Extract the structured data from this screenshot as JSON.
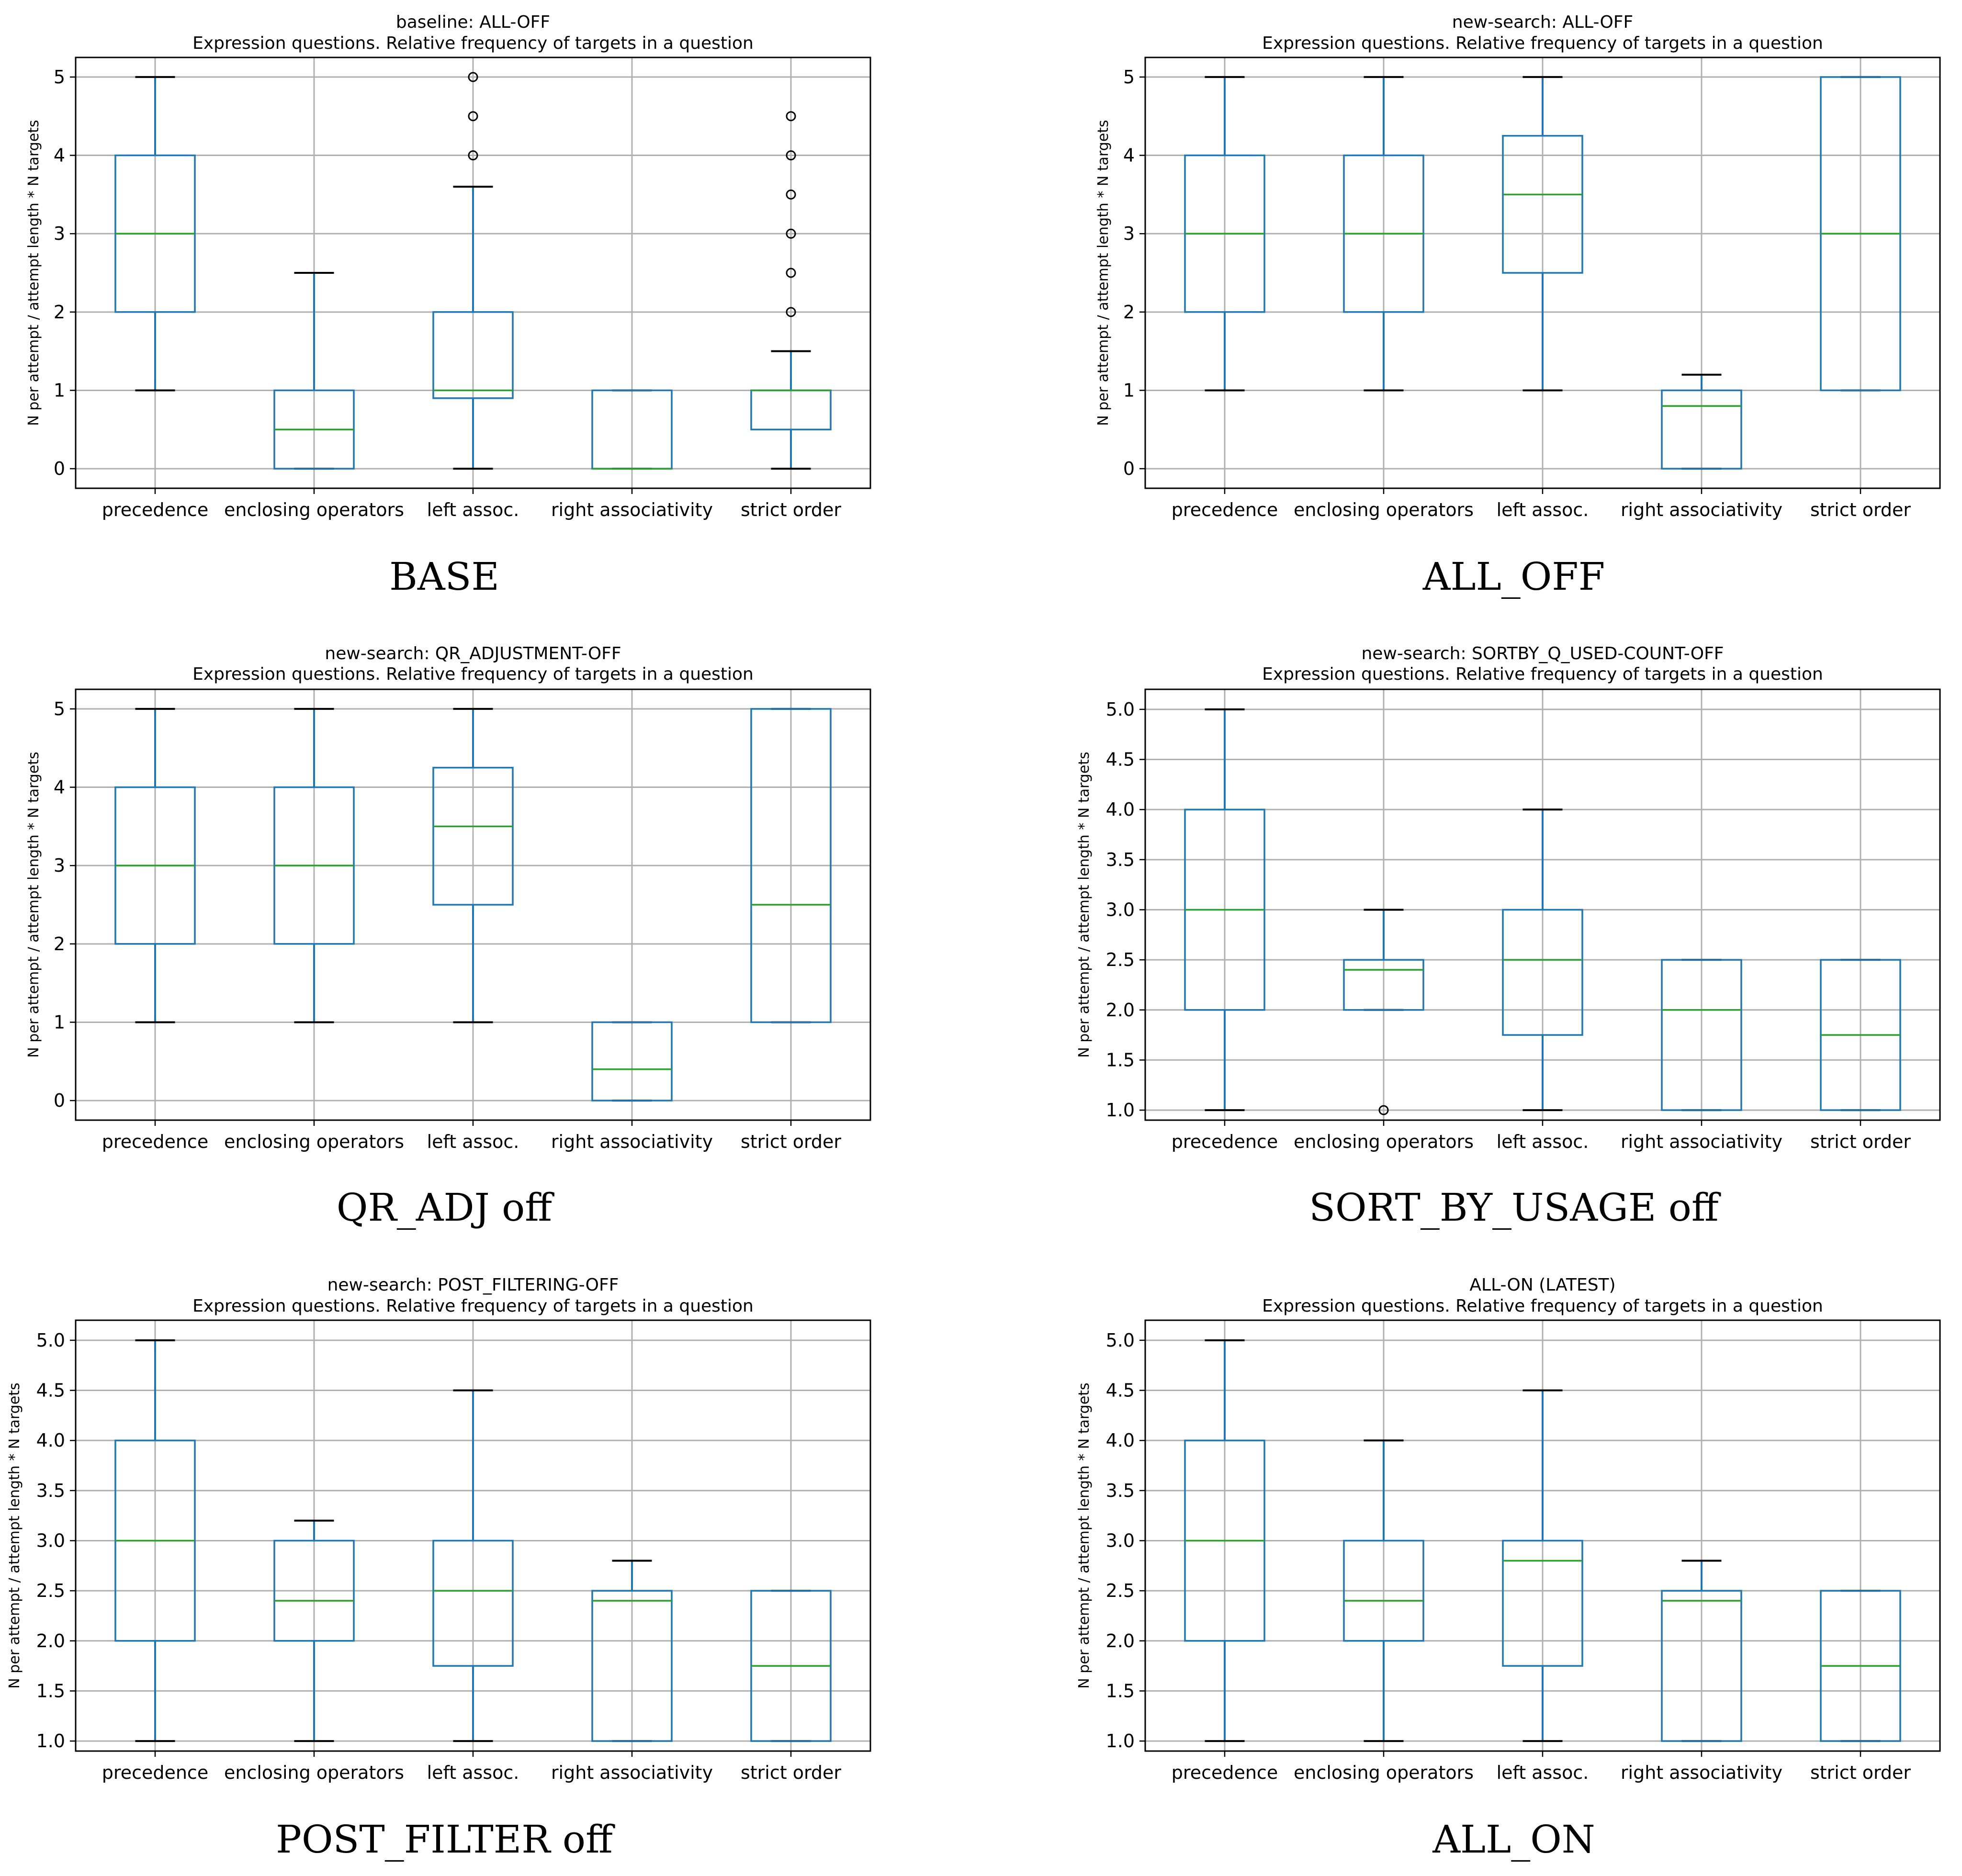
{
  "figure": {
    "description_free": true
  },
  "chart_data": [
    {
      "type": "boxplot",
      "title": "baseline: ALL-OFF",
      "subtitle": "Expression questions. Relative frequency of targets in a question",
      "caption": "BASE",
      "ylabel": "N per attempt / attempt length * N targets",
      "xlabel": "",
      "ylim": [
        -0.25,
        5.25
      ],
      "yticks": [
        0,
        1,
        2,
        3,
        4,
        5
      ],
      "ytick_labels": [
        "0",
        "1",
        "2",
        "3",
        "4",
        "5"
      ],
      "grid": true,
      "categories": [
        "precedence",
        "enclosing operators",
        "left assoc.",
        "right associativity",
        "strict order"
      ],
      "boxes": [
        {
          "wlo": 1,
          "q1": 2,
          "med": 3,
          "q3": 4,
          "whi": 5,
          "fliers": []
        },
        {
          "wlo": 0,
          "q1": 0,
          "med": 0.5,
          "q3": 1,
          "whi": 2.5,
          "fliers": []
        },
        {
          "wlo": 0,
          "q1": 0.9,
          "med": 1,
          "q3": 2,
          "whi": 3.6,
          "fliers": [
            4,
            4.5,
            5
          ]
        },
        {
          "wlo": 0,
          "q1": 0,
          "med": 0,
          "q3": 1,
          "whi": 1,
          "fliers": []
        },
        {
          "wlo": 0,
          "q1": 0.5,
          "med": 1,
          "q3": 1,
          "whi": 1.5,
          "fliers": [
            2,
            2.5,
            3,
            3.5,
            4,
            4.5
          ]
        }
      ]
    },
    {
      "type": "boxplot",
      "title": "new-search: ALL-OFF",
      "subtitle": "Expression questions. Relative frequency of targets in a question",
      "caption": "ALL_OFF",
      "ylabel": "N per attempt / attempt length * N targets",
      "xlabel": "",
      "ylim": [
        -0.25,
        5.25
      ],
      "yticks": [
        0,
        1,
        2,
        3,
        4,
        5
      ],
      "ytick_labels": [
        "0",
        "1",
        "2",
        "3",
        "4",
        "5"
      ],
      "grid": true,
      "categories": [
        "precedence",
        "enclosing operators",
        "left assoc.",
        "right associativity",
        "strict order"
      ],
      "boxes": [
        {
          "wlo": 1,
          "q1": 2,
          "med": 3,
          "q3": 4,
          "whi": 5,
          "fliers": []
        },
        {
          "wlo": 1,
          "q1": 2,
          "med": 3,
          "q3": 4,
          "whi": 5,
          "fliers": []
        },
        {
          "wlo": 1,
          "q1": 2.5,
          "med": 3.5,
          "q3": 4.25,
          "whi": 5,
          "fliers": []
        },
        {
          "wlo": 0,
          "q1": 0,
          "med": 0.8,
          "q3": 1,
          "whi": 1.2,
          "fliers": []
        },
        {
          "wlo": 1,
          "q1": 1,
          "med": 3,
          "q3": 5,
          "whi": 5,
          "fliers": []
        }
      ]
    },
    {
      "type": "boxplot",
      "title": "new-search: QR_ADJUSTMENT-OFF",
      "subtitle": "Expression questions. Relative frequency of targets in a question",
      "caption": "QR_ADJ off",
      "ylabel": "N per attempt / attempt length * N targets",
      "xlabel": "",
      "ylim": [
        -0.25,
        5.25
      ],
      "yticks": [
        0,
        1,
        2,
        3,
        4,
        5
      ],
      "ytick_labels": [
        "0",
        "1",
        "2",
        "3",
        "4",
        "5"
      ],
      "grid": true,
      "categories": [
        "precedence",
        "enclosing operators",
        "left assoc.",
        "right associativity",
        "strict order"
      ],
      "boxes": [
        {
          "wlo": 1,
          "q1": 2,
          "med": 3,
          "q3": 4,
          "whi": 5,
          "fliers": []
        },
        {
          "wlo": 1,
          "q1": 2,
          "med": 3,
          "q3": 4,
          "whi": 5,
          "fliers": []
        },
        {
          "wlo": 1,
          "q1": 2.5,
          "med": 3.5,
          "q3": 4.25,
          "whi": 5,
          "fliers": []
        },
        {
          "wlo": 0,
          "q1": 0,
          "med": 0.4,
          "q3": 1,
          "whi": 1,
          "fliers": []
        },
        {
          "wlo": 1,
          "q1": 1,
          "med": 2.5,
          "q3": 5,
          "whi": 5,
          "fliers": []
        }
      ]
    },
    {
      "type": "boxplot",
      "title": "new-search: SORTBY_Q_USED-COUNT-OFF",
      "subtitle": "Expression questions. Relative frequency of targets in a question",
      "caption": "SORT_BY_USAGE off",
      "ylabel": "N per attempt / attempt length * N targets",
      "xlabel": "",
      "ylim": [
        0.9,
        5.2
      ],
      "yticks": [
        1.0,
        1.5,
        2.0,
        2.5,
        3.0,
        3.5,
        4.0,
        4.5,
        5.0
      ],
      "ytick_labels": [
        "1.0",
        "1.5",
        "2.0",
        "2.5",
        "3.0",
        "3.5",
        "4.0",
        "4.5",
        "5.0"
      ],
      "grid": true,
      "categories": [
        "precedence",
        "enclosing operators",
        "left assoc.",
        "right associativity",
        "strict order"
      ],
      "boxes": [
        {
          "wlo": 1,
          "q1": 2,
          "med": 3,
          "q3": 4,
          "whi": 5,
          "fliers": []
        },
        {
          "wlo": 2,
          "q1": 2,
          "med": 2.4,
          "q3": 2.5,
          "whi": 3,
          "fliers": [
            1
          ]
        },
        {
          "wlo": 1,
          "q1": 1.75,
          "med": 2.5,
          "q3": 3,
          "whi": 4,
          "fliers": []
        },
        {
          "wlo": 1,
          "q1": 1,
          "med": 2,
          "q3": 2.5,
          "whi": 2.5,
          "fliers": []
        },
        {
          "wlo": 1,
          "q1": 1,
          "med": 1.75,
          "q3": 2.5,
          "whi": 2.5,
          "fliers": []
        }
      ]
    },
    {
      "type": "boxplot",
      "title": "new-search: POST_FILTERING-OFF",
      "subtitle": "Expression questions. Relative frequency of targets in a question",
      "caption": "POST_FILTER off",
      "ylabel": "N per attempt / attempt length * N targets",
      "xlabel": "",
      "ylim": [
        0.9,
        5.2
      ],
      "yticks": [
        1.0,
        1.5,
        2.0,
        2.5,
        3.0,
        3.5,
        4.0,
        4.5,
        5.0
      ],
      "ytick_labels": [
        "1.0",
        "1.5",
        "2.0",
        "2.5",
        "3.0",
        "3.5",
        "4.0",
        "4.5",
        "5.0"
      ],
      "grid": true,
      "categories": [
        "precedence",
        "enclosing operators",
        "left assoc.",
        "right associativity",
        "strict order"
      ],
      "boxes": [
        {
          "wlo": 1,
          "q1": 2,
          "med": 3,
          "q3": 4,
          "whi": 5,
          "fliers": []
        },
        {
          "wlo": 1,
          "q1": 2,
          "med": 2.4,
          "q3": 3,
          "whi": 3.2,
          "fliers": []
        },
        {
          "wlo": 1,
          "q1": 1.75,
          "med": 2.5,
          "q3": 3,
          "whi": 4.5,
          "fliers": []
        },
        {
          "wlo": 1,
          "q1": 1,
          "med": 2.4,
          "q3": 2.5,
          "whi": 2.8,
          "fliers": []
        },
        {
          "wlo": 1,
          "q1": 1,
          "med": 1.75,
          "q3": 2.5,
          "whi": 2.5,
          "fliers": []
        }
      ]
    },
    {
      "type": "boxplot",
      "title": "ALL-ON (LATEST)",
      "subtitle": "Expression questions. Relative frequency of targets in a question",
      "caption": "ALL_ON",
      "ylabel": "N per attempt / attempt length * N targets",
      "xlabel": "",
      "ylim": [
        0.9,
        5.2
      ],
      "yticks": [
        1.0,
        1.5,
        2.0,
        2.5,
        3.0,
        3.5,
        4.0,
        4.5,
        5.0
      ],
      "ytick_labels": [
        "1.0",
        "1.5",
        "2.0",
        "2.5",
        "3.0",
        "3.5",
        "4.0",
        "4.5",
        "5.0"
      ],
      "grid": true,
      "categories": [
        "precedence",
        "enclosing operators",
        "left assoc.",
        "right associativity",
        "strict order"
      ],
      "boxes": [
        {
          "wlo": 1,
          "q1": 2,
          "med": 3,
          "q3": 4,
          "whi": 5,
          "fliers": []
        },
        {
          "wlo": 1,
          "q1": 2,
          "med": 2.4,
          "q3": 3,
          "whi": 4,
          "fliers": []
        },
        {
          "wlo": 1,
          "q1": 1.75,
          "med": 2.8,
          "q3": 3,
          "whi": 4.5,
          "fliers": []
        },
        {
          "wlo": 1,
          "q1": 1,
          "med": 2.4,
          "q3": 2.5,
          "whi": 2.8,
          "fliers": []
        },
        {
          "wlo": 1,
          "q1": 1,
          "med": 1.75,
          "q3": 2.5,
          "whi": 2.5,
          "fliers": []
        }
      ]
    }
  ],
  "colors": {
    "box": "#1f77b4",
    "median": "#2ca02c",
    "grid": "#b0b0b0",
    "whisker": "#1f77b4",
    "cap": "#000000",
    "axes": "#000000"
  }
}
